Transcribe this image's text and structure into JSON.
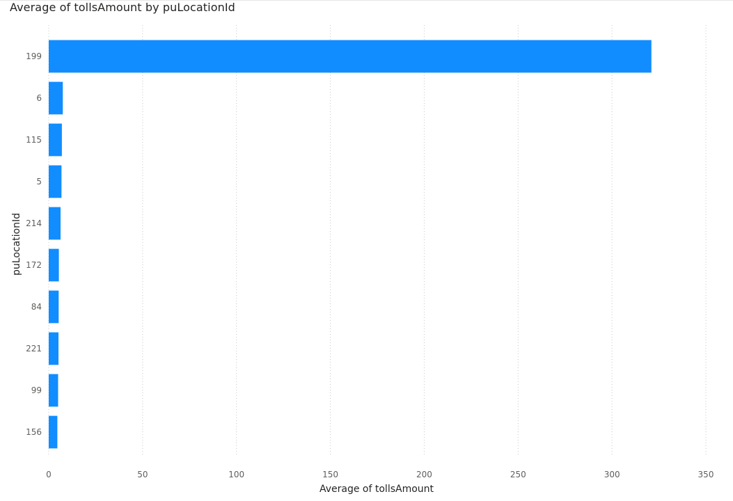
{
  "chart_data": {
    "type": "bar",
    "orientation": "horizontal",
    "title": "Average of tollsAmount by puLocationId",
    "xlabel": "Average of tollsAmount",
    "ylabel": "puLocationId",
    "categories": [
      "199",
      "6",
      "115",
      "5",
      "214",
      "172",
      "84",
      "221",
      "99",
      "156"
    ],
    "values": [
      321,
      7.5,
      7.0,
      6.8,
      6.3,
      5.4,
      5.3,
      5.2,
      5.0,
      4.6
    ],
    "xlim": [
      0,
      350
    ],
    "xticks": [
      "0",
      "50",
      "100",
      "150",
      "200",
      "250",
      "300",
      "350"
    ],
    "grid": true,
    "bar_color": "#118dff",
    "grid_color": "#c8c6c4"
  }
}
